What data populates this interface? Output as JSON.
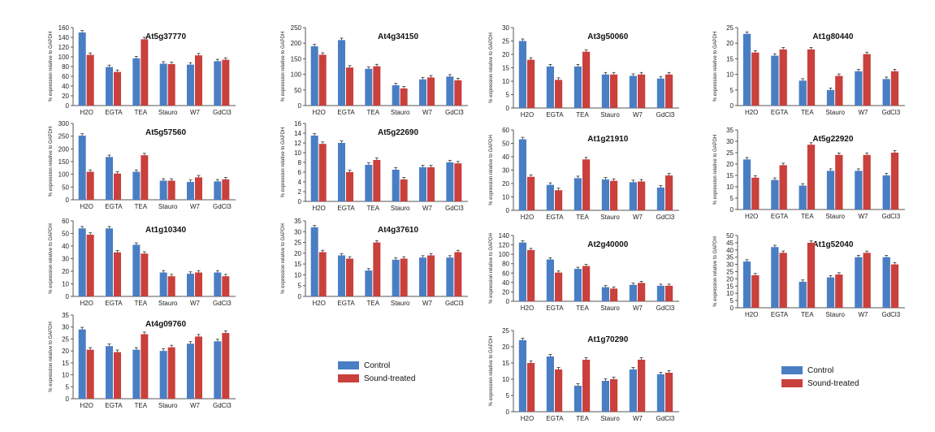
{
  "colors": {
    "control": "#4a7ec4",
    "treated": "#c9403c"
  },
  "legends": [
    {
      "items": [
        {
          "key": "control",
          "label": "Control"
        },
        {
          "key": "treated",
          "label": "Sound-treated"
        }
      ]
    },
    {
      "items": [
        {
          "key": "control",
          "label": "Control"
        },
        {
          "key": "treated",
          "label": "Sound-treated"
        }
      ]
    }
  ],
  "chart_data": [
    {
      "type": "bar",
      "title": "At5g37770",
      "ylabel": "% expression relative to GAPDH",
      "ylim": [
        0,
        160
      ],
      "yticks": [
        0,
        20,
        40,
        60,
        80,
        100,
        120,
        140,
        160
      ],
      "categories": [
        "H2O",
        "EGTA",
        "TEA",
        "Stauro",
        "W7",
        "GdCl3"
      ],
      "series": [
        {
          "name": "Control",
          "values": [
            150,
            79,
            97,
            86,
            84,
            91
          ]
        },
        {
          "name": "Sound-treated",
          "values": [
            104,
            69,
            136,
            85,
            103,
            94
          ]
        }
      ]
    },
    {
      "type": "bar",
      "title": "At4g34150",
      "ylabel": "% expression relative to GAPDH",
      "ylim": [
        0,
        250
      ],
      "yticks": [
        0,
        50,
        100,
        150,
        200,
        250
      ],
      "categories": [
        "H2O",
        "EGTA",
        "TEA",
        "Stauro",
        "W7",
        "GdCl3"
      ],
      "series": [
        {
          "name": "Control",
          "values": [
            190,
            210,
            118,
            65,
            84,
            93
          ]
        },
        {
          "name": "Sound-treated",
          "values": [
            163,
            122,
            126,
            55,
            90,
            81
          ]
        }
      ]
    },
    {
      "type": "bar",
      "title": "At3g50060",
      "ylabel": "% expression relative to GAPDH",
      "ylim": [
        0,
        30
      ],
      "yticks": [
        0,
        5,
        10,
        15,
        20,
        25,
        30
      ],
      "categories": [
        "H2O",
        "EGTA",
        "TEA",
        "Stauro",
        "W7",
        "GdCl3"
      ],
      "series": [
        {
          "name": "Control",
          "values": [
            25,
            15.5,
            15.5,
            12.5,
            12,
            11
          ]
        },
        {
          "name": "Sound-treated",
          "values": [
            18,
            10.5,
            21,
            12.5,
            12.5,
            12.5
          ]
        }
      ]
    },
    {
      "type": "bar",
      "title": "At1g80440",
      "ylabel": "% expression relative to GAPDH",
      "ylim": [
        0,
        25
      ],
      "yticks": [
        0,
        5,
        10,
        15,
        20,
        25
      ],
      "categories": [
        "H2O",
        "EGTA",
        "TEA",
        "Stauro",
        "W7",
        "GdCl3"
      ],
      "series": [
        {
          "name": "Control",
          "values": [
            23,
            16,
            8,
            5,
            11,
            8.5
          ]
        },
        {
          "name": "Sound-treated",
          "values": [
            17,
            18,
            18,
            9.5,
            16.5,
            11
          ]
        }
      ]
    },
    {
      "type": "bar",
      "title": "At5g57560",
      "ylabel": "% expression relative to GAPDH",
      "ylim": [
        0,
        300
      ],
      "yticks": [
        0,
        50,
        100,
        150,
        200,
        250,
        300
      ],
      "categories": [
        "H2O",
        "EGTA",
        "TEA",
        "Stauro",
        "W7",
        "GdCl3"
      ],
      "series": [
        {
          "name": "Control",
          "values": [
            252,
            168,
            110,
            75,
            70,
            72
          ]
        },
        {
          "name": "Sound-treated",
          "values": [
            110,
            103,
            175,
            75,
            88,
            80
          ]
        }
      ]
    },
    {
      "type": "bar",
      "title": "At5g22690",
      "ylabel": "% expression relative to GAPDH",
      "ylim": [
        0,
        16
      ],
      "yticks": [
        0,
        2,
        4,
        6,
        8,
        10,
        12,
        14,
        16
      ],
      "categories": [
        "H2O",
        "EGTA",
        "TEA",
        "Stauro",
        "W7",
        "GdCl3"
      ],
      "series": [
        {
          "name": "Control",
          "values": [
            13.5,
            12,
            7.5,
            6.5,
            7,
            8
          ]
        },
        {
          "name": "Sound-treated",
          "values": [
            11.8,
            6,
            8.5,
            4.5,
            7,
            7.8
          ]
        }
      ]
    },
    {
      "type": "bar",
      "title": "At1g21910",
      "ylabel": "% expression relative to GAPDH",
      "ylim": [
        0,
        60
      ],
      "yticks": [
        0,
        10,
        20,
        30,
        40,
        50,
        60
      ],
      "categories": [
        "H2O",
        "EGTA",
        "TEA",
        "Stauro",
        "W7",
        "GdCl3"
      ],
      "series": [
        {
          "name": "Control",
          "values": [
            53,
            19,
            24,
            23,
            21,
            17
          ]
        },
        {
          "name": "Sound-treated",
          "values": [
            25,
            15,
            38,
            22,
            21.5,
            26
          ]
        }
      ]
    },
    {
      "type": "bar",
      "title": "At5g22920",
      "ylabel": "% expression relative to GAPDH",
      "ylim": [
        0,
        35
      ],
      "yticks": [
        0,
        5,
        10,
        15,
        20,
        25,
        30,
        35
      ],
      "categories": [
        "H2O",
        "EGTA",
        "TEA",
        "Stauro",
        "W7",
        "GdCl3"
      ],
      "series": [
        {
          "name": "Control",
          "values": [
            22,
            13,
            10.5,
            17,
            17,
            15
          ]
        },
        {
          "name": "Sound-treated",
          "values": [
            14,
            19.5,
            28.5,
            24,
            24,
            25
          ]
        }
      ]
    },
    {
      "type": "bar",
      "title": "At1g10340",
      "ylabel": "% expression relative to GAPDH",
      "ylim": [
        0,
        60
      ],
      "yticks": [
        0,
        10,
        20,
        30,
        40,
        50,
        60
      ],
      "categories": [
        "H2O",
        "EGTA",
        "TEA",
        "Stauro",
        "W7",
        "GdCl3"
      ],
      "series": [
        {
          "name": "Control",
          "values": [
            54,
            54,
            41,
            19,
            18,
            19
          ]
        },
        {
          "name": "Sound-treated",
          "values": [
            49,
            35,
            34,
            16,
            19,
            16
          ]
        }
      ]
    },
    {
      "type": "bar",
      "title": "At4g37610",
      "ylabel": "% expression relative to GAPDH",
      "ylim": [
        0,
        35
      ],
      "yticks": [
        0,
        5,
        10,
        15,
        20,
        25,
        30,
        35
      ],
      "categories": [
        "H2O",
        "EGTA",
        "TEA",
        "Stauro",
        "W7",
        "GdCl3"
      ],
      "series": [
        {
          "name": "Control",
          "values": [
            32,
            19,
            12,
            17,
            18,
            18
          ]
        },
        {
          "name": "Sound-treated",
          "values": [
            20.5,
            17.5,
            25,
            17.5,
            19,
            20.5
          ]
        }
      ]
    },
    {
      "type": "bar",
      "title": "At2g40000",
      "ylabel": "% expression relative to GAPDH",
      "ylim": [
        0,
        140
      ],
      "yticks": [
        0,
        20,
        40,
        60,
        80,
        100,
        120,
        140
      ],
      "categories": [
        "H2O",
        "EGTA",
        "TEA",
        "Stauro",
        "W7",
        "GdCl3"
      ],
      "series": [
        {
          "name": "Control",
          "values": [
            125,
            89,
            69,
            30,
            35,
            33
          ]
        },
        {
          "name": "Sound-treated",
          "values": [
            109,
            61,
            75,
            27,
            39,
            33
          ]
        }
      ]
    },
    {
      "type": "bar",
      "title": "At1g52040",
      "ylabel": "% expression relative to GAPDH",
      "ylim": [
        0,
        50
      ],
      "yticks": [
        0,
        5,
        10,
        15,
        20,
        25,
        30,
        35,
        40,
        45,
        50
      ],
      "categories": [
        "H2O",
        "EGTA",
        "TEA",
        "Stauro",
        "W7",
        "GdCl3"
      ],
      "series": [
        {
          "name": "Control",
          "values": [
            32,
            42,
            18,
            21,
            35,
            35
          ]
        },
        {
          "name": "Sound-treated",
          "values": [
            22.5,
            38,
            45,
            23,
            38,
            30
          ]
        }
      ]
    },
    {
      "type": "bar",
      "title": "At4g09760",
      "ylabel": "% expression relative to GAPDH",
      "ylim": [
        0,
        35
      ],
      "yticks": [
        0,
        5,
        10,
        15,
        20,
        25,
        30,
        35
      ],
      "categories": [
        "H2O",
        "EGTA",
        "TEA",
        "Stauro",
        "W7",
        "GdCl3"
      ],
      "series": [
        {
          "name": "Control",
          "values": [
            29,
            22,
            20.5,
            20,
            23,
            24
          ]
        },
        {
          "name": "Sound-treated",
          "values": [
            20.5,
            19.5,
            27,
            21.5,
            26,
            27.5
          ]
        }
      ]
    },
    {
      "type": "bar",
      "title": "At1g70290",
      "ylabel": "% expression relative to GAPDH",
      "ylim": [
        0,
        25
      ],
      "yticks": [
        0,
        5,
        10,
        15,
        20,
        25
      ],
      "categories": [
        "H2O",
        "EGTA",
        "TEA",
        "Stauro",
        "W7",
        "GdCl3"
      ],
      "series": [
        {
          "name": "Control",
          "values": [
            22,
            17,
            8,
            9.5,
            13,
            11.5
          ]
        },
        {
          "name": "Sound-treated",
          "values": [
            15,
            13,
            16,
            10,
            16,
            12
          ]
        }
      ]
    }
  ]
}
